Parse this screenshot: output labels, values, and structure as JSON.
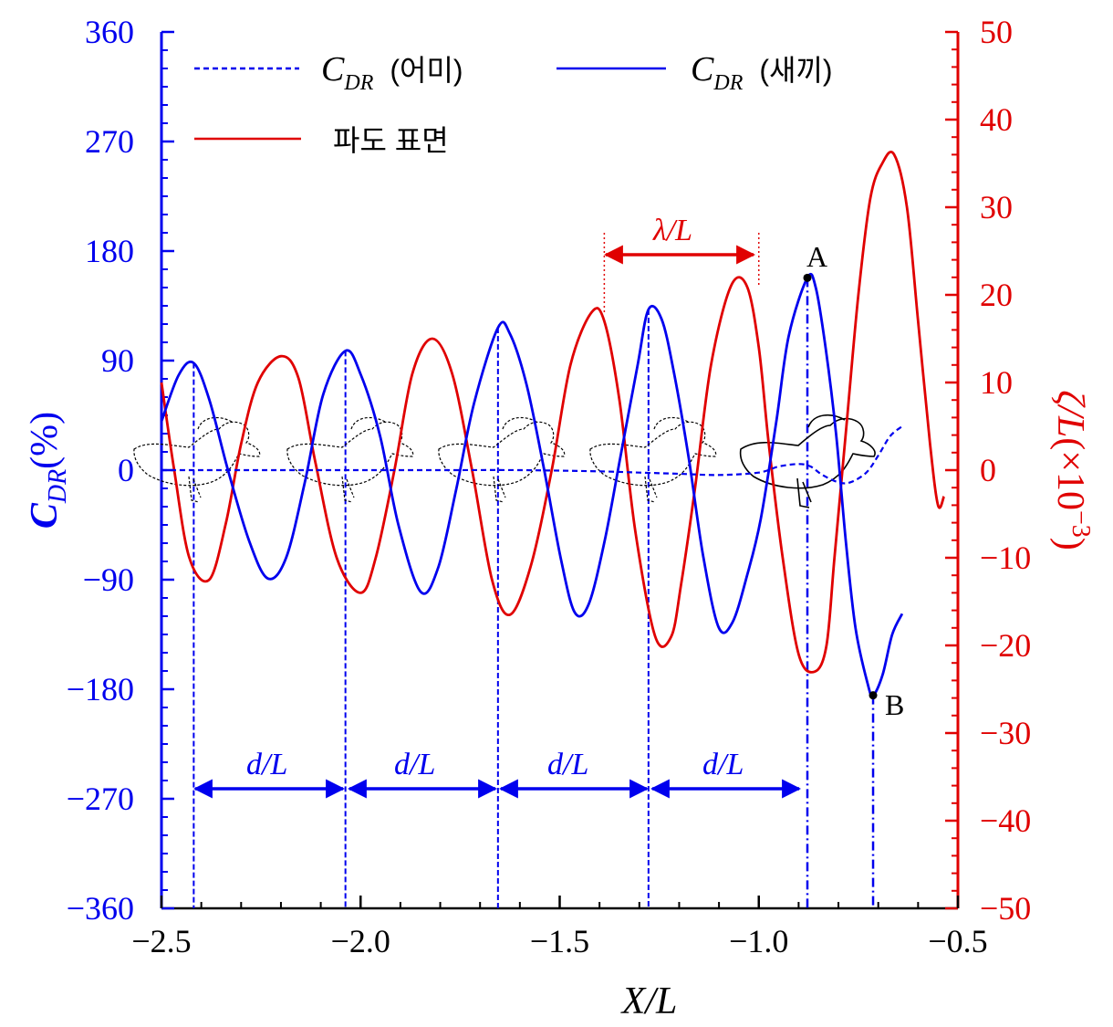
{
  "chart_data": {
    "type": "line",
    "x_axis": {
      "label": "X/L",
      "range": [
        -2.5,
        -0.5
      ],
      "ticks": [
        "−2.5",
        "−2.0",
        "−1.5",
        "−1.0",
        "−0.5"
      ]
    },
    "y_axis_left": {
      "label": "C_DR(%)",
      "range": [
        -360,
        360
      ],
      "ticks": [
        "−360",
        "−270",
        "−180",
        "−90",
        "0",
        "90",
        "180",
        "270",
        "360"
      ],
      "color": "#0000ee"
    },
    "y_axis_right": {
      "label": "ζ/L(×10^−3)",
      "range": [
        -50,
        50
      ],
      "ticks": [
        "−50",
        "−40",
        "−30",
        "−20",
        "−10",
        "0",
        "10",
        "20",
        "30",
        "40",
        "50"
      ],
      "color": "#e00000"
    },
    "legend": {
      "mother_math": "C",
      "mother_sub": "DR",
      "mother_text": "(어미)",
      "child_math": "C",
      "child_sub": "DR",
      "child_text": "(새끼)",
      "wave_text": "파도 표면"
    },
    "series": [
      {
        "name": "C_DR (어미)",
        "axis": "left",
        "style": "dashed",
        "color": "#0000ee",
        "x": [
          -2.5,
          -2.2,
          -2.0,
          -1.8,
          -1.6,
          -1.4,
          -1.3,
          -1.2,
          -1.1,
          -1.0,
          -0.95,
          -0.9,
          -0.87,
          -0.84,
          -0.8,
          -0.77,
          -0.73,
          -0.7,
          -0.67,
          -0.64
        ],
        "y": [
          0,
          0,
          0,
          0,
          0,
          -1,
          -2,
          -3,
          -4,
          -2,
          3,
          5,
          3,
          -4,
          -10,
          -10,
          -2,
          12,
          28,
          36
        ]
      },
      {
        "name": "C_DR (새끼)",
        "axis": "left",
        "style": "solid",
        "color": "#0000ee",
        "x": [
          -2.5,
          -2.457,
          -2.419,
          -2.38,
          -2.333,
          -2.28,
          -2.233,
          -2.187,
          -2.14,
          -2.094,
          -2.038,
          -1.999,
          -1.951,
          -1.905,
          -1.849,
          -1.805,
          -1.76,
          -1.715,
          -1.655,
          -1.625,
          -1.583,
          -1.54,
          -1.497,
          -1.462,
          -1.427,
          -1.387,
          -1.348,
          -1.305,
          -1.277,
          -1.244,
          -1.213,
          -1.176,
          -1.14,
          -1.101,
          -1.066,
          -1.029,
          -0.995,
          -0.956,
          -0.925,
          -0.878,
          -0.857,
          -0.832,
          -0.806,
          -0.781,
          -0.757,
          -0.727,
          -0.713,
          -0.689,
          -0.665,
          -0.64
        ],
        "y": [
          40,
          78,
          88,
          58,
          0,
          -58,
          -89,
          -72,
          -10,
          62,
          98,
          78,
          28,
          -45,
          -100,
          -80,
          -16,
          55,
          117,
          112,
          70,
          2,
          -73,
          -117,
          -110,
          -58,
          10,
          85,
          132,
          124,
          80,
          10,
          -70,
          -129,
          -125,
          -86,
          -40,
          40,
          110,
          158,
          150,
          100,
          30,
          -60,
          -130,
          -175,
          -185,
          -168,
          -135,
          -118
        ]
      },
      {
        "name": "파도 표면",
        "axis": "right",
        "style": "solid",
        "color": "#e00000",
        "x": [
          -2.5,
          -2.468,
          -2.43,
          -2.38,
          -2.338,
          -2.3,
          -2.258,
          -2.2,
          -2.156,
          -2.114,
          -2.06,
          -2.0,
          -1.962,
          -1.915,
          -1.87,
          -1.82,
          -1.77,
          -1.72,
          -1.67,
          -1.625,
          -1.573,
          -1.52,
          -1.473,
          -1.42,
          -1.388,
          -1.35,
          -1.31,
          -1.26,
          -1.22,
          -1.195,
          -1.16,
          -1.12,
          -1.07,
          -1.03,
          -1.0,
          -0.975,
          -0.94,
          -0.9,
          -0.86,
          -0.83,
          -0.81,
          -0.78,
          -0.75,
          -0.72,
          -0.69,
          -0.66,
          -0.628,
          -0.6,
          -0.57,
          -0.55,
          -0.535
        ],
        "y": [
          10,
          0,
          -10,
          -12.5,
          -6,
          3,
          10,
          13,
          10.5,
          1,
          -10,
          -14,
          -10,
          0,
          11,
          15,
          11,
          0,
          -12.5,
          -16.5,
          -11,
          0,
          12,
          18,
          17,
          8,
          -7,
          -19,
          -19,
          -13,
          -2,
          12,
          21,
          21,
          14,
          3,
          -10,
          -21,
          -23,
          -20,
          -10,
          5,
          20,
          31,
          35,
          36,
          30,
          17,
          3,
          -4,
          -3
        ]
      }
    ],
    "annotations": {
      "lambda_label": "λ/L",
      "d_label": "d/L",
      "point_a": "A",
      "point_b": "B"
    }
  }
}
